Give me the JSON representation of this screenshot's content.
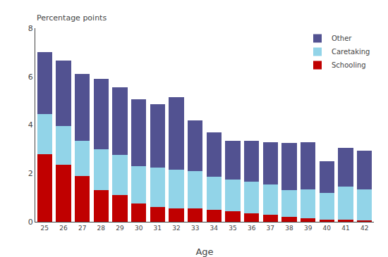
{
  "chart_data": {
    "type": "bar",
    "stacked": true,
    "xlabel": "Age",
    "ylabel": "Percentage points",
    "categories": [
      "25",
      "26",
      "27",
      "28",
      "29",
      "30",
      "31",
      "32",
      "33",
      "34",
      "35",
      "36",
      "37",
      "38",
      "39",
      "40",
      "41",
      "42"
    ],
    "series": [
      {
        "name": "Schooling",
        "color": "#c00000",
        "values": [
          2.8,
          2.35,
          1.9,
          1.3,
          1.1,
          0.75,
          0.6,
          0.55,
          0.55,
          0.5,
          0.45,
          0.35,
          0.3,
          0.2,
          0.15,
          0.1,
          0.1,
          0.05
        ]
      },
      {
        "name": "Caretaking",
        "color": "#92d4e8",
        "values": [
          1.65,
          1.6,
          1.45,
          1.7,
          1.65,
          1.55,
          1.65,
          1.6,
          1.55,
          1.35,
          1.3,
          1.3,
          1.25,
          1.1,
          1.2,
          1.1,
          1.35,
          1.3
        ]
      },
      {
        "name": "Other",
        "color": "#525291",
        "values": [
          2.55,
          2.7,
          2.75,
          2.9,
          2.8,
          2.75,
          2.6,
          3.0,
          2.1,
          1.85,
          1.6,
          1.7,
          1.75,
          1.95,
          1.95,
          1.3,
          1.6,
          1.6
        ]
      }
    ],
    "ylim": [
      0,
      8
    ],
    "yticks": [
      0,
      2,
      4,
      6,
      8
    ],
    "grid": false,
    "legend": "upper right"
  }
}
